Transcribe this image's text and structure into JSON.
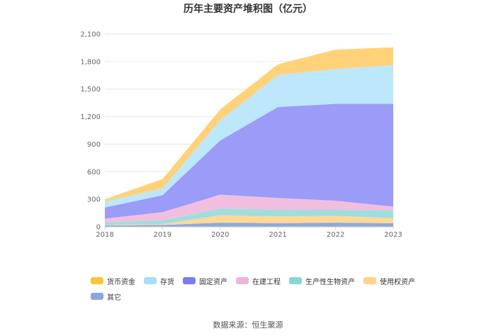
{
  "chart_data": {
    "type": "area",
    "stacked": true,
    "title": "历年主要资产堆积图（亿元）",
    "xlabel": "",
    "ylabel": "",
    "categories": [
      "2018",
      "2019",
      "2020",
      "2021",
      "2022",
      "2023"
    ],
    "ylim": [
      0,
      2100
    ],
    "yticks": [
      0,
      300,
      600,
      900,
      1200,
      1500,
      1800,
      2100
    ],
    "ytick_labels": [
      "0",
      "300",
      "600",
      "900",
      "1,200",
      "1,500",
      "1,800",
      "2,100"
    ],
    "grid": true,
    "legend_position": "bottom",
    "series": [
      {
        "name": "其它",
        "color": "#8fa8dc",
        "values": [
          15,
          20,
          45,
          40,
          45,
          40
        ]
      },
      {
        "name": "使用权资产",
        "color": "#ffd89a",
        "values": [
          5,
          10,
          80,
          75,
          75,
          55
        ]
      },
      {
        "name": "生产性生物资产",
        "color": "#9fdedd",
        "values": [
          30,
          40,
          75,
          70,
          65,
          85
        ]
      },
      {
        "name": "在建工程",
        "color": "#f0bfe0",
        "values": [
          40,
          90,
          150,
          130,
          100,
          40
        ]
      },
      {
        "name": "固定资产",
        "color": "#9b9bf8",
        "values": [
          120,
          185,
          590,
          990,
          1055,
          1120
        ]
      },
      {
        "name": "存货",
        "color": "#bde7fb",
        "values": [
          65,
          75,
          220,
          350,
          380,
          420
        ]
      },
      {
        "name": "货币资金",
        "color": "#ffd27a",
        "values": [
          25,
          100,
          120,
          115,
          210,
          195
        ]
      }
    ],
    "legend": [
      {
        "name": "货币资金",
        "color": "#fcc43a"
      },
      {
        "name": "存货",
        "color": "#a8def9"
      },
      {
        "name": "固定资产",
        "color": "#7b7bf3"
      },
      {
        "name": "在建工程",
        "color": "#efb4dc"
      },
      {
        "name": "生产性生物资产",
        "color": "#86d7d7"
      },
      {
        "name": "使用权资产",
        "color": "#ffd38c"
      },
      {
        "name": "其它",
        "color": "#8aa7dc"
      }
    ]
  },
  "source": "数据来源：恒生聚源"
}
